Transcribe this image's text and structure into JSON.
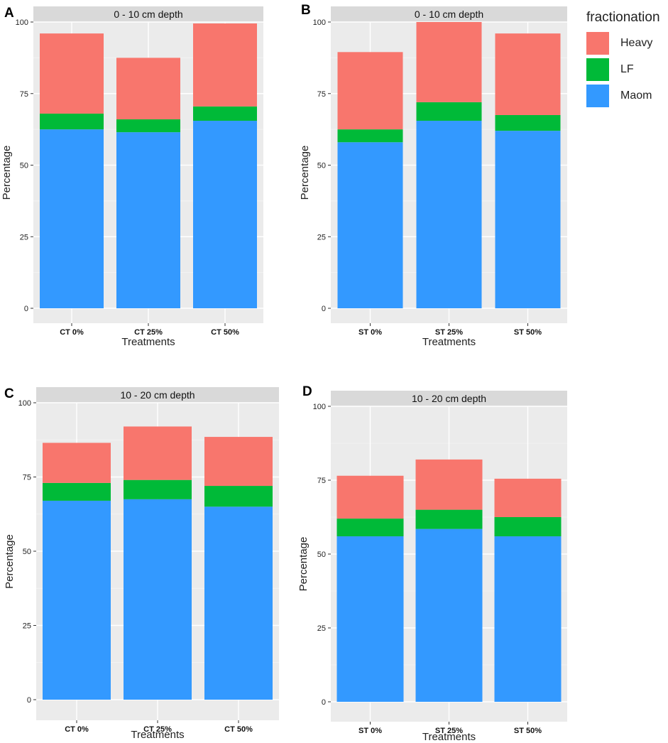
{
  "panel_letters": [
    "A",
    "B",
    "C",
    "D"
  ],
  "legend": {
    "title": "fractionation",
    "items": [
      {
        "label": "Heavy",
        "color": "#F8766D"
      },
      {
        "label": "LF",
        "color": "#00BA38"
      },
      {
        "label": "Maom",
        "color": "#3399FF"
      }
    ]
  },
  "chart_data": [
    {
      "type": "bar",
      "stacked": true,
      "title": "0 - 10 cm depth",
      "xlabel": "Treatments",
      "ylabel": "Percentage",
      "ylim": [
        0,
        100
      ],
      "yticks": [
        0,
        25,
        50,
        75,
        100
      ],
      "categories": [
        "CT 0%",
        "CT 25%",
        "CT 50%"
      ],
      "series": [
        {
          "name": "Maom",
          "values": [
            62.5,
            61.5,
            65.5
          ]
        },
        {
          "name": "LF",
          "values": [
            5.5,
            4.5,
            5.0
          ]
        },
        {
          "name": "Heavy",
          "values": [
            28.0,
            21.5,
            29.0
          ]
        }
      ]
    },
    {
      "type": "bar",
      "stacked": true,
      "title": "0 - 10 cm depth",
      "xlabel": "Treatments",
      "ylabel": "Percentage",
      "ylim": [
        0,
        100
      ],
      "yticks": [
        0,
        25,
        50,
        75,
        100
      ],
      "categories": [
        "ST 0%",
        "ST 25%",
        "ST 50%"
      ],
      "series": [
        {
          "name": "Maom",
          "values": [
            58.0,
            65.5,
            62.0
          ]
        },
        {
          "name": "LF",
          "values": [
            4.5,
            6.5,
            5.5
          ]
        },
        {
          "name": "Heavy",
          "values": [
            27.0,
            28.0,
            28.5
          ]
        }
      ]
    },
    {
      "type": "bar",
      "stacked": true,
      "title": "10 - 20 cm depth",
      "xlabel": "Treatments",
      "ylabel": "Percentage",
      "ylim": [
        0,
        100
      ],
      "yticks": [
        0,
        25,
        50,
        75,
        100
      ],
      "categories": [
        "CT 0%",
        "CT 25%",
        "CT 50%"
      ],
      "series": [
        {
          "name": "Maom",
          "values": [
            67.0,
            67.5,
            65.0
          ]
        },
        {
          "name": "LF",
          "values": [
            6.0,
            6.5,
            7.0
          ]
        },
        {
          "name": "Heavy",
          "values": [
            13.5,
            18.0,
            16.5
          ]
        }
      ]
    },
    {
      "type": "bar",
      "stacked": true,
      "title": "10 - 20 cm depth",
      "xlabel": "Treatments",
      "ylabel": "Percentage",
      "ylim": [
        0,
        100
      ],
      "yticks": [
        0,
        25,
        50,
        75,
        100
      ],
      "categories": [
        "ST 0%",
        "ST 25%",
        "ST 50%"
      ],
      "series": [
        {
          "name": "Maom",
          "values": [
            56.0,
            58.5,
            56.0
          ]
        },
        {
          "name": "LF",
          "values": [
            6.0,
            6.5,
            6.5
          ]
        },
        {
          "name": "Heavy",
          "values": [
            14.5,
            17.0,
            13.0
          ]
        }
      ]
    }
  ]
}
